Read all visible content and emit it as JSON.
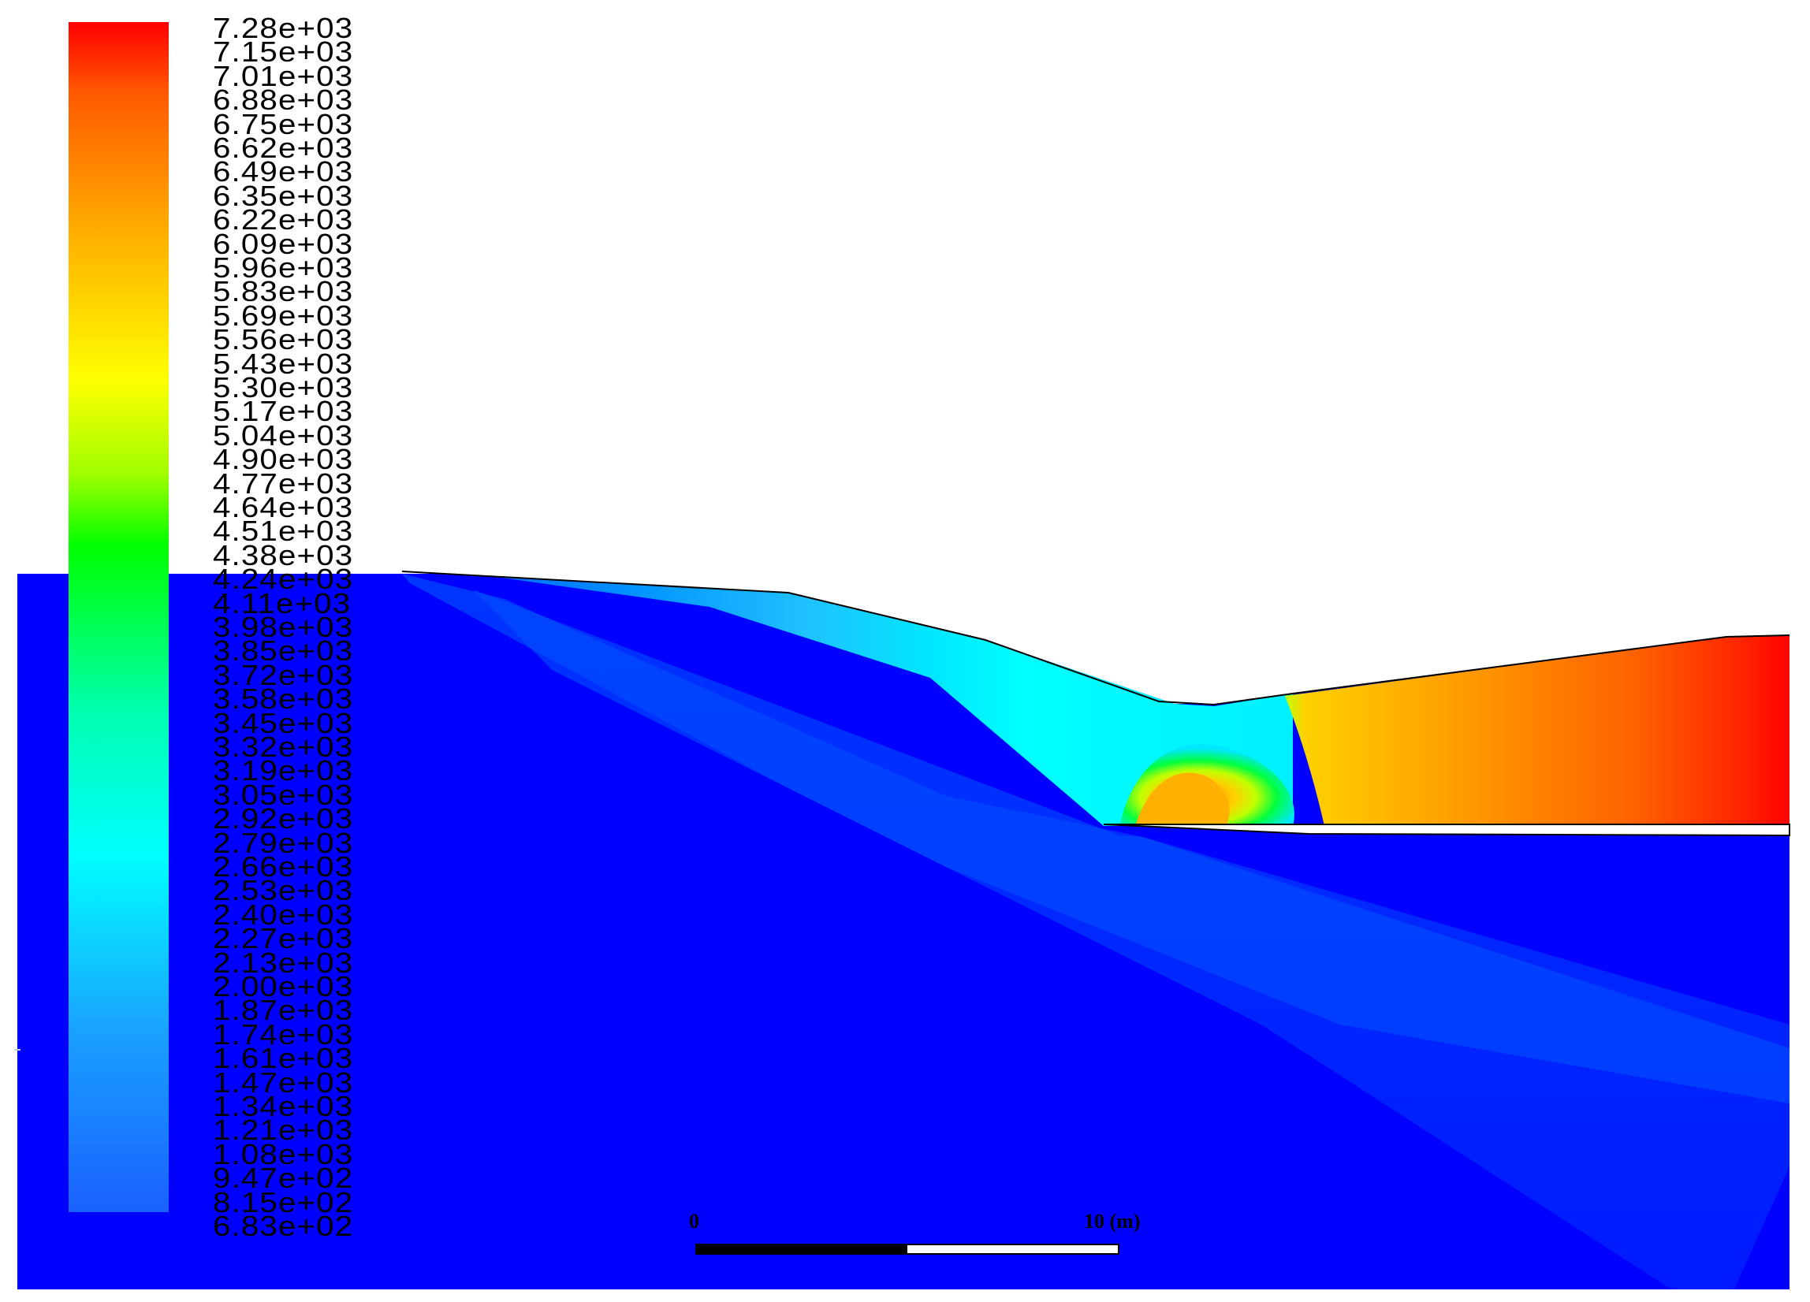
{
  "legend": {
    "colors": [
      "#0000ff",
      "#0070ff",
      "#00e0ff",
      "#00ff40",
      "#e0ff00",
      "#ffc000",
      "#ff7000",
      "#ff0000"
    ],
    "labels": [
      "7.28e+03",
      "7.15e+03",
      "7.01e+03",
      "6.88e+03",
      "6.75e+03",
      "6.62e+03",
      "6.49e+03",
      "6.35e+03",
      "6.22e+03",
      "6.09e+03",
      "5.96e+03",
      "5.83e+03",
      "5.69e+03",
      "5.56e+03",
      "5.43e+03",
      "5.30e+03",
      "5.17e+03",
      "5.04e+03",
      "4.90e+03",
      "4.77e+03",
      "4.64e+03",
      "4.51e+03",
      "4.38e+03",
      "4.24e+03",
      "4.11e+03",
      "3.98e+03",
      "3.85e+03",
      "3.72e+03",
      "3.58e+03",
      "3.45e+03",
      "3.32e+03",
      "3.19e+03",
      "3.05e+03",
      "2.92e+03",
      "2.79e+03",
      "2.66e+03",
      "2.53e+03",
      "2.40e+03",
      "2.27e+03",
      "2.13e+03",
      "2.00e+03",
      "1.87e+03",
      "1.74e+03",
      "1.61e+03",
      "1.47e+03",
      "1.34e+03",
      "1.21e+03",
      "1.08e+03",
      "9.47e+02",
      "8.15e+02",
      "6.83e+02"
    ]
  },
  "scale_bar": {
    "start_label": "0",
    "end_label": "10 (m)"
  },
  "field_colors": {
    "background_blue": "#0000ff",
    "plume_blue": "#0040ff",
    "cyan": "#00e8ff",
    "orange": "#ff9000",
    "red": "#ff0000"
  }
}
